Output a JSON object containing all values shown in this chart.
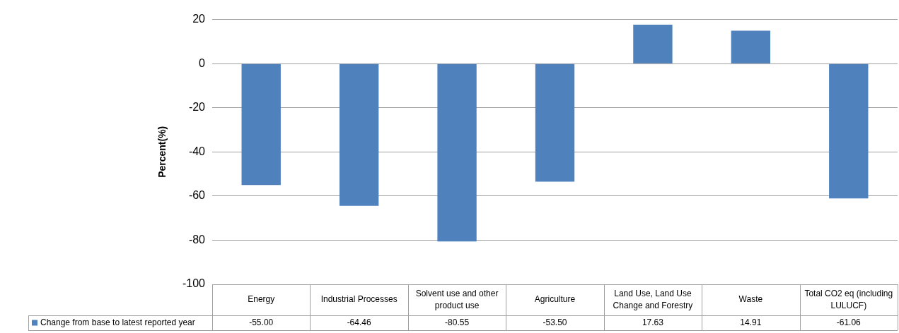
{
  "chart_data": {
    "type": "bar",
    "ylabel": "Percent(%)",
    "categories": [
      "Energy",
      "Industrial Processes",
      "Solvent use and other product use",
      "Agriculture",
      "Land Use, Land Use Change and Forestry",
      "Waste",
      "Total CO2 eq (including LULUCF)"
    ],
    "series": [
      {
        "name": "Change from base to latest reported year",
        "color": "#4f81bd",
        "values": [
          -55.0,
          -64.46,
          -80.55,
          -53.5,
          17.63,
          14.91,
          -61.06
        ],
        "value_labels": [
          "-55.00",
          "-64.46",
          "-80.55",
          "-53.50",
          "17.63",
          "14.91",
          "-61.06"
        ]
      }
    ],
    "ylim": [
      -100,
      20
    ],
    "yticks": [
      -100,
      -80,
      -60,
      -40,
      -20,
      0,
      20
    ],
    "grid": "y"
  }
}
